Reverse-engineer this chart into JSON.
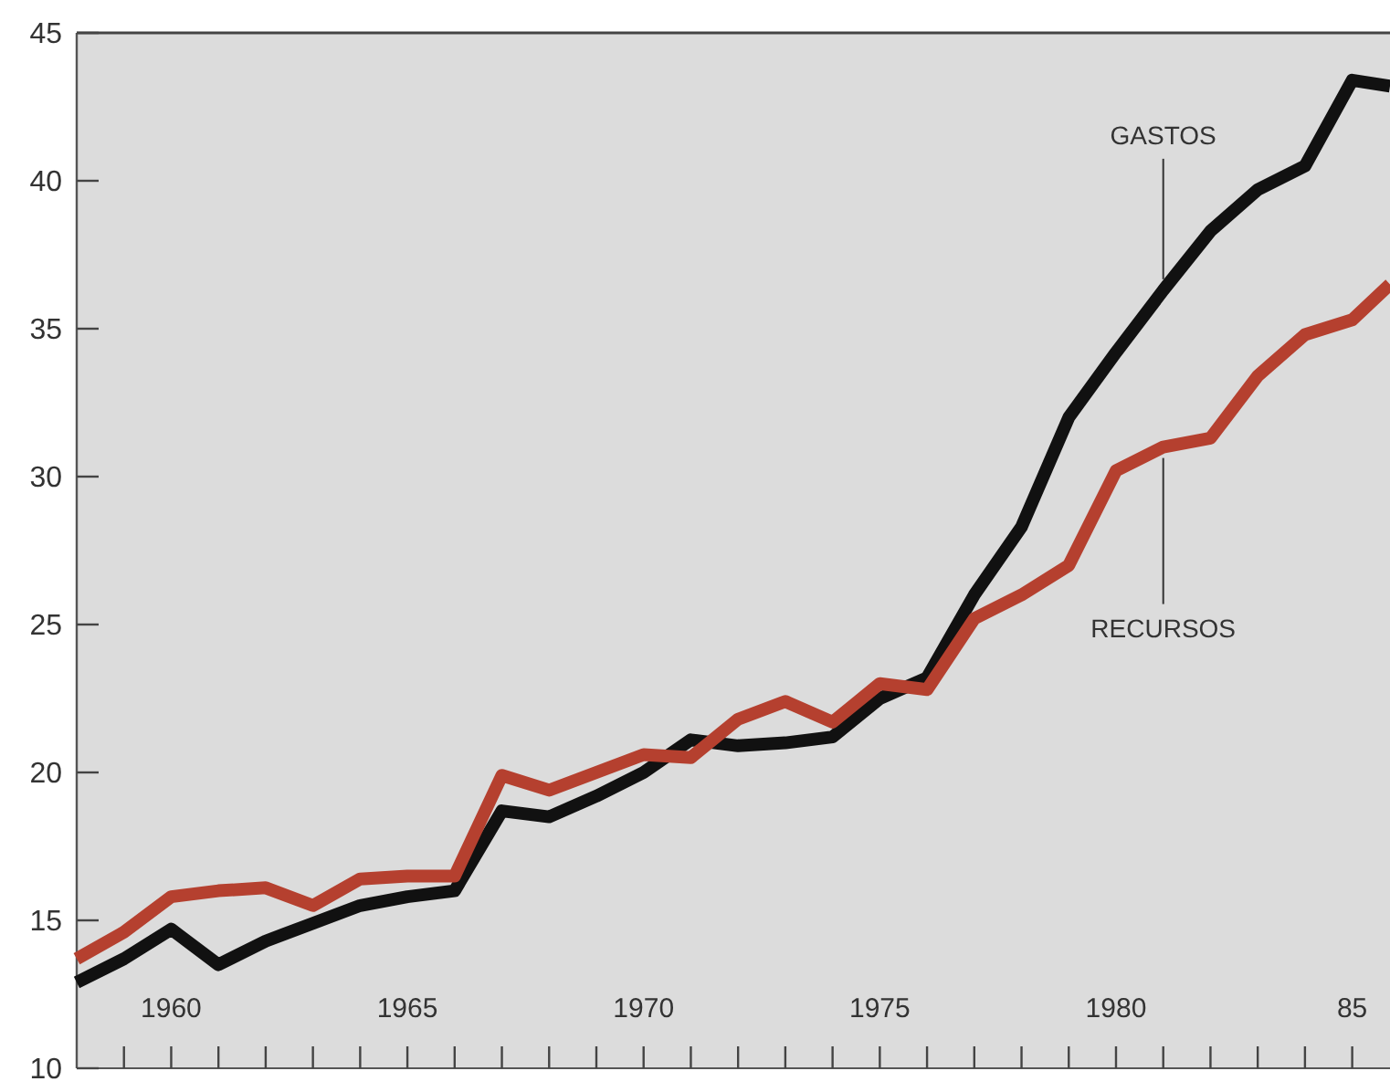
{
  "chart_data": {
    "type": "line",
    "x": [
      1958,
      1959,
      1960,
      1961,
      1962,
      1963,
      1964,
      1965,
      1966,
      1967,
      1968,
      1969,
      1970,
      1971,
      1972,
      1973,
      1974,
      1975,
      1976,
      1977,
      1978,
      1979,
      1980,
      1981,
      1982,
      1983,
      1984,
      1985,
      1985.8
    ],
    "series": [
      {
        "name": "GASTOS",
        "color": "#111111",
        "values": [
          12.9,
          13.7,
          14.7,
          13.5,
          14.3,
          14.9,
          15.5,
          15.8,
          16.0,
          18.7,
          18.5,
          19.2,
          20.0,
          21.1,
          20.9,
          21.0,
          21.2,
          22.5,
          23.2,
          26.0,
          28.3,
          32.0,
          34.2,
          36.3,
          38.3,
          39.7,
          40.5,
          43.4,
          43.2
        ]
      },
      {
        "name": "RECURSOS",
        "color": "#b5402f",
        "values": [
          13.7,
          14.6,
          15.8,
          16.0,
          16.1,
          15.5,
          16.4,
          16.5,
          16.5,
          19.9,
          19.4,
          20.0,
          20.6,
          20.5,
          21.8,
          22.4,
          21.7,
          23.0,
          22.8,
          25.2,
          26.0,
          27.0,
          30.2,
          31.0,
          31.3,
          33.4,
          34.8,
          35.3,
          36.5
        ]
      }
    ],
    "xlim": [
      1958,
      1985.8
    ],
    "xticks": [
      {
        "value": 1959,
        "label": null
      },
      {
        "value": 1960,
        "label": "1960"
      },
      {
        "value": 1961,
        "label": null
      },
      {
        "value": 1962,
        "label": null
      },
      {
        "value": 1963,
        "label": null
      },
      {
        "value": 1964,
        "label": null
      },
      {
        "value": 1965,
        "label": "1965"
      },
      {
        "value": 1966,
        "label": null
      },
      {
        "value": 1967,
        "label": null
      },
      {
        "value": 1968,
        "label": null
      },
      {
        "value": 1969,
        "label": null
      },
      {
        "value": 1970,
        "label": "1970"
      },
      {
        "value": 1971,
        "label": null
      },
      {
        "value": 1972,
        "label": null
      },
      {
        "value": 1973,
        "label": null
      },
      {
        "value": 1974,
        "label": null
      },
      {
        "value": 1975,
        "label": "1975"
      },
      {
        "value": 1976,
        "label": null
      },
      {
        "value": 1977,
        "label": null
      },
      {
        "value": 1978,
        "label": null
      },
      {
        "value": 1979,
        "label": null
      },
      {
        "value": 1980,
        "label": "1980"
      },
      {
        "value": 1981,
        "label": null
      },
      {
        "value": 1982,
        "label": null
      },
      {
        "value": 1983,
        "label": null
      },
      {
        "value": 1984,
        "label": null
      },
      {
        "value": 1985,
        "label": "85"
      }
    ],
    "ylim": [
      10,
      45
    ],
    "yticks": [
      10,
      15,
      20,
      25,
      30,
      35,
      40,
      45
    ],
    "grid": false,
    "line_style": "solid",
    "marker": "none"
  }
}
